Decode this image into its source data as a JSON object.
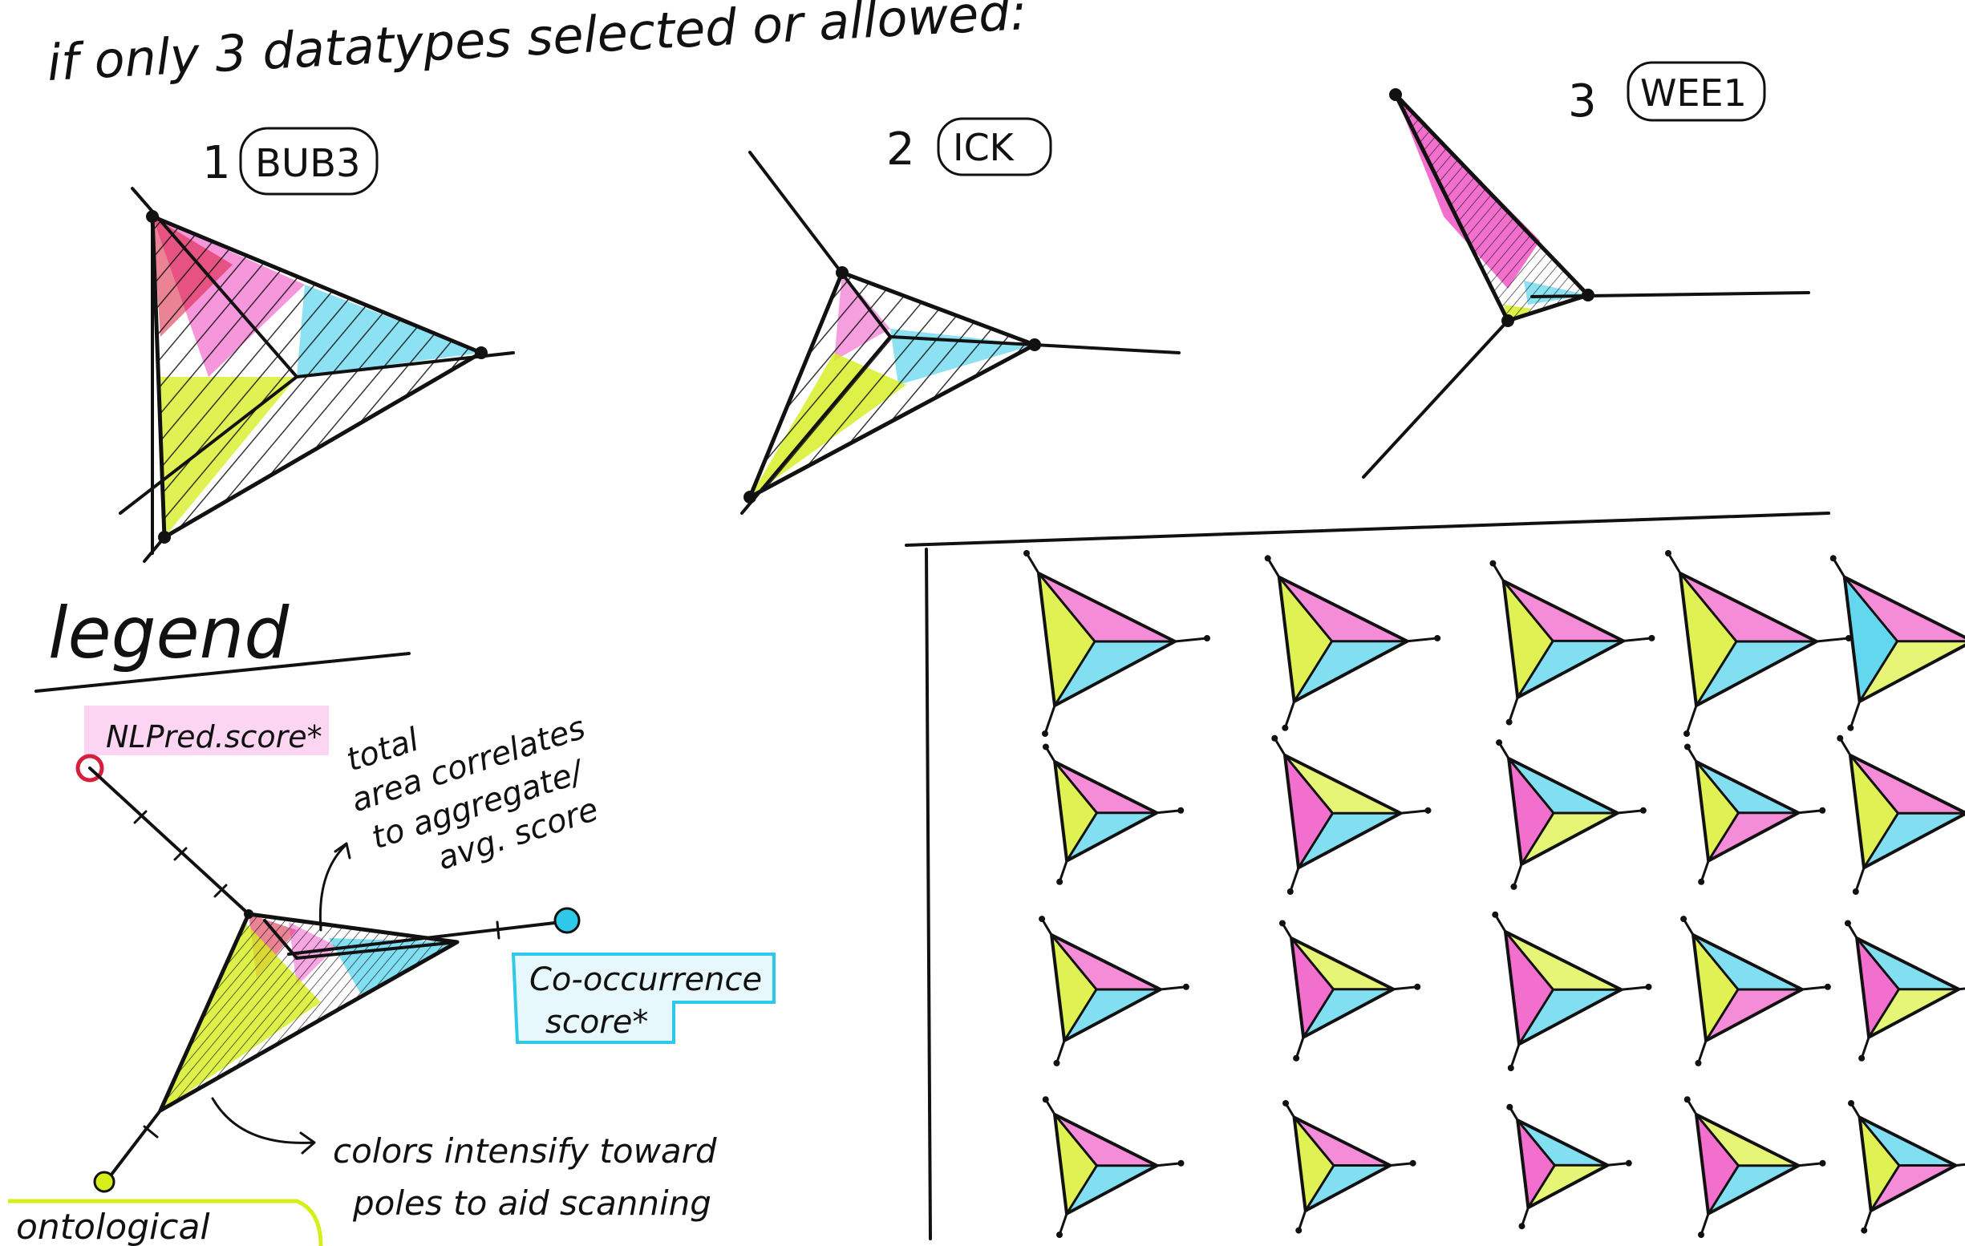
{
  "title": "if only 3 datatypes selected or allowed:",
  "examples": [
    {
      "number": "1",
      "label": "BUB3"
    },
    {
      "number": "2",
      "label": "ICK"
    },
    {
      "number": "3",
      "label": "WEE1"
    }
  ],
  "legend": {
    "heading": "legend",
    "axes": {
      "nlp": "NLPred.score*",
      "cooccurrence_line1": "Co-occurrence",
      "cooccurrence_line2": "score*",
      "ontological": "ontological"
    },
    "notes": {
      "area_line1": "total",
      "area_line2": "area correlates",
      "area_line3": "to aggregate/",
      "area_line4": "avg. score",
      "color_line1": "colors intensify toward",
      "color_line2": "poles to aid scanning"
    }
  },
  "colors": {
    "magenta": "#ee3fbe",
    "cyan": "#2ec9e8",
    "yellow": "#d6ee1a",
    "red": "#d81e3a",
    "ink": "#111111"
  },
  "grid": {
    "rows": 4,
    "cols": 5
  }
}
